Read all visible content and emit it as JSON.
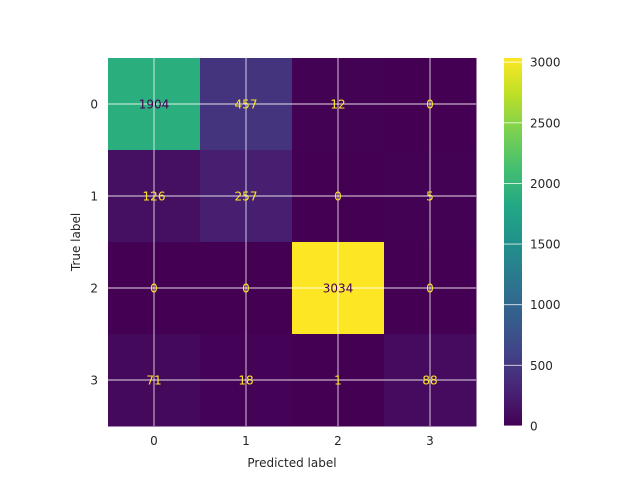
{
  "chart_data": {
    "type": "heatmap",
    "title": "",
    "xlabel": "Predicted label",
    "ylabel": "True label",
    "x_categories": [
      "0",
      "1",
      "2",
      "3"
    ],
    "y_categories": [
      "0",
      "1",
      "2",
      "3"
    ],
    "values": [
      [
        1904,
        457,
        12,
        0
      ],
      [
        126,
        257,
        0,
        5
      ],
      [
        0,
        0,
        3034,
        0
      ],
      [
        71,
        18,
        1,
        88
      ]
    ],
    "colormap": "viridis",
    "vmin": 0,
    "vmax": 3034,
    "colorbar_ticks": [
      0,
      500,
      1000,
      1500,
      2000,
      2500,
      3000
    ],
    "grid": true,
    "text_color_dark": "#440154",
    "text_color_light": "#fde725"
  }
}
